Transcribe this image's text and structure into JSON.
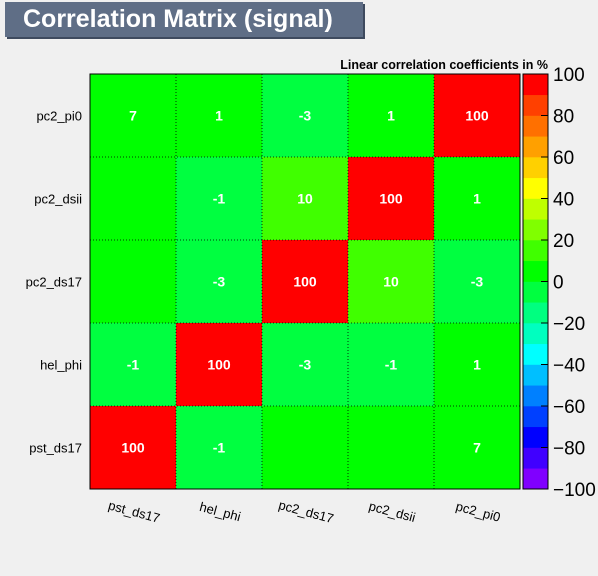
{
  "chart_data": {
    "type": "heatmap",
    "title": "Correlation Matrix (signal)",
    "subtitle": "Linear correlation coefficients in %",
    "x_labels": [
      "pst_ds17",
      "hel_phi",
      "pc2_ds17",
      "pc2_dsii",
      "pc2_pi0"
    ],
    "y_labels": [
      "pst_ds17",
      "hel_phi",
      "pc2_ds17",
      "pc2_dsii",
      "pc2_pi0"
    ],
    "values": [
      [
        100,
        -1,
        0,
        0,
        7
      ],
      [
        -1,
        100,
        -3,
        -1,
        1
      ],
      [
        0,
        -3,
        100,
        10,
        -3
      ],
      [
        0,
        -1,
        10,
        100,
        1
      ],
      [
        7,
        1,
        -3,
        1,
        100
      ]
    ],
    "zlim": [
      -100,
      100
    ],
    "colorbar_ticks": [
      100,
      80,
      60,
      40,
      20,
      0,
      -20,
      -40,
      -60,
      -80,
      -100
    ],
    "colorbar_tick_labels": [
      "100",
      "80",
      "60",
      "40",
      "20",
      "0",
      "−20",
      "−40",
      "−60",
      "−80",
      "−100"
    ],
    "palette": [
      "#8000ff",
      "#4000ff",
      "#0000ff",
      "#0040ff",
      "#0080ff",
      "#00bfff",
      "#00ffff",
      "#00ffbf",
      "#00ff80",
      "#00ff40",
      "#00ff00",
      "#40ff00",
      "#80ff00",
      "#bfff00",
      "#ffff00",
      "#ffd000",
      "#ffa000",
      "#ff7000",
      "#ff4000",
      "#ff0000"
    ],
    "label_color": "#ffffff",
    "grid": true
  }
}
